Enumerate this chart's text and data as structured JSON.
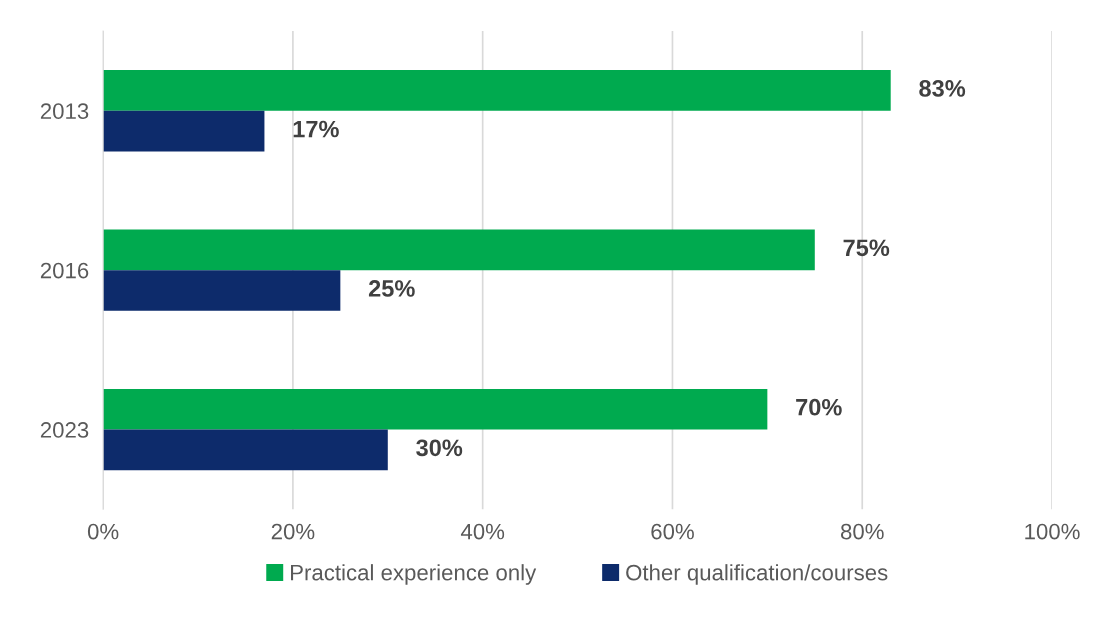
{
  "chart_data": {
    "type": "bar",
    "orientation": "horizontal",
    "categories": [
      "2013",
      "2016",
      "2023"
    ],
    "series": [
      {
        "name": "Practical experience only",
        "color": "#00aa4f",
        "values": [
          83,
          75,
          70
        ],
        "value_labels": [
          "83%",
          "75%",
          "70%"
        ]
      },
      {
        "name": "Other qualification/courses",
        "color": "#0d2b6b",
        "values": [
          17,
          25,
          30
        ],
        "value_labels": [
          "17%",
          "25%",
          "30%"
        ]
      }
    ],
    "xlim": [
      0,
      100
    ],
    "xticks": [
      {
        "value": 0,
        "label": "0%"
      },
      {
        "value": 20,
        "label": "20%"
      },
      {
        "value": 40,
        "label": "40%"
      },
      {
        "value": 60,
        "label": "60%"
      },
      {
        "value": 80,
        "label": "80%"
      },
      {
        "value": 100,
        "label": "100%"
      }
    ],
    "grid": "x",
    "legend": "bottom"
  }
}
